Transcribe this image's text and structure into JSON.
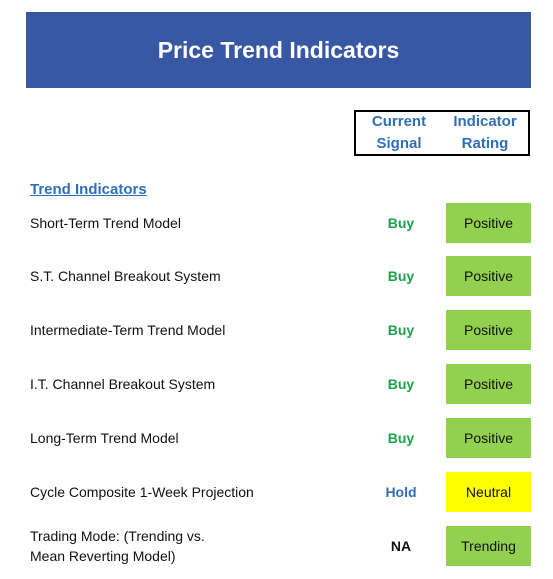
{
  "title": "Price Trend Indicators",
  "headers": {
    "signal_line1": "Current",
    "signal_line2": "Signal",
    "rating_line1": "Indicator",
    "rating_line2": "Rating"
  },
  "section_title": "Trend Indicators",
  "colors": {
    "title_bg": "#3858a4",
    "header_text": "#2f6fb7",
    "buy": "#1fa04a",
    "hold": "#2f6fb7",
    "na": "#111111",
    "positive_bg": "#92d050",
    "neutral_bg": "#ffff00"
  },
  "rows": [
    {
      "label": "Short-Term Trend Model",
      "signal": "Buy",
      "rating": "Positive",
      "signal_color": "#1fa04a",
      "rating_bg": "#92d050"
    },
    {
      "label": "S.T. Channel Breakout System",
      "signal": "Buy",
      "rating": "Positive",
      "signal_color": "#1fa04a",
      "rating_bg": "#92d050"
    },
    {
      "label": "Intermediate-Term Trend Model",
      "signal": "Buy",
      "rating": "Positive",
      "signal_color": "#1fa04a",
      "rating_bg": "#92d050"
    },
    {
      "label": "I.T. Channel Breakout System",
      "signal": "Buy",
      "rating": "Positive",
      "signal_color": "#1fa04a",
      "rating_bg": "#92d050"
    },
    {
      "label": "Long-Term Trend Model",
      "signal": "Buy",
      "rating": "Positive",
      "signal_color": "#1fa04a",
      "rating_bg": "#92d050"
    },
    {
      "label": "Cycle Composite 1-Week Projection",
      "signal": "Hold",
      "rating": "Neutral",
      "signal_color": "#2f6fb7",
      "rating_bg": "#ffff00"
    },
    {
      "label_line1": "Trading Mode: (Trending vs.",
      "label_line2": "Mean Reverting Model)",
      "signal": "NA",
      "rating": "Trending",
      "signal_color": "#111111",
      "rating_bg": "#92d050"
    }
  ]
}
